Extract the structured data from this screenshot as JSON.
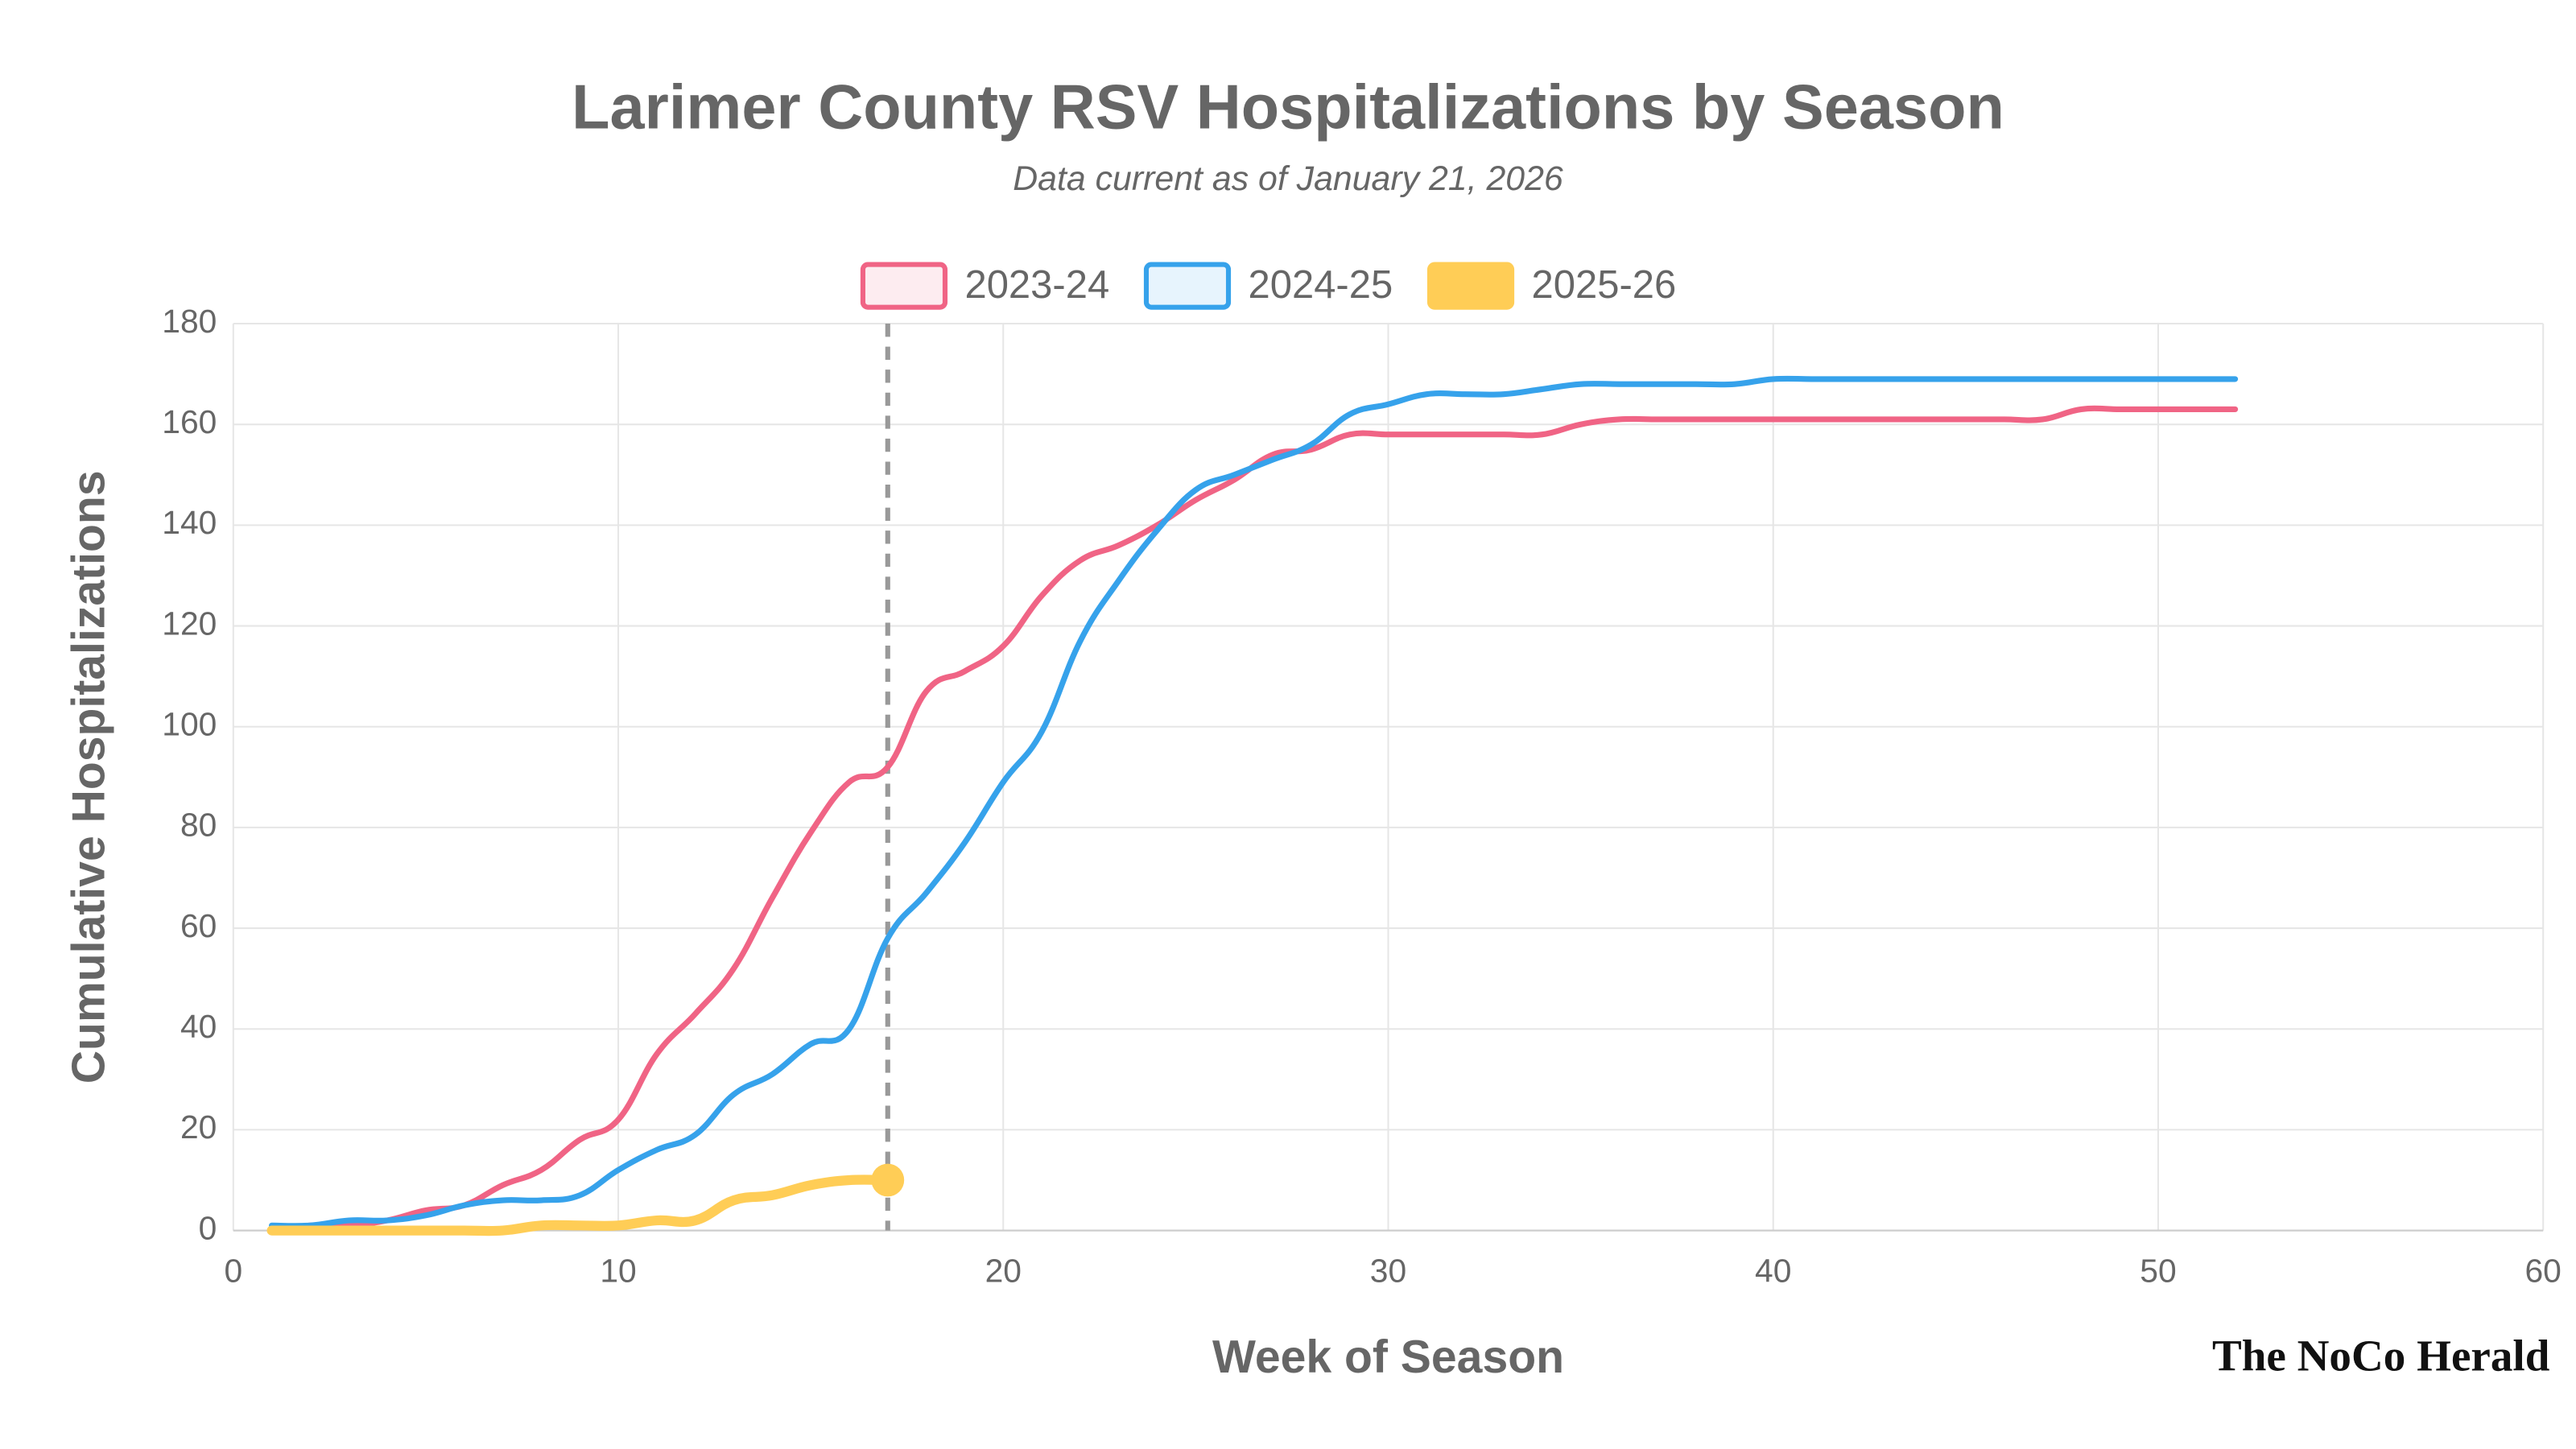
{
  "chart_data": {
    "type": "line",
    "title": "Larimer County RSV Hospitalizations by Season",
    "subtitle": "Data current as of January 21, 2026",
    "x_label": "Week of Season",
    "y_label": "Cumulative Hospitalizations",
    "credit": "The NoCo Herald",
    "xlim": [
      0,
      60
    ],
    "xticks": [
      0,
      10,
      20,
      30,
      40,
      50,
      60
    ],
    "ylim": [
      0,
      180
    ],
    "yticks": [
      0,
      20,
      40,
      60,
      80,
      100,
      120,
      140,
      160,
      180
    ],
    "grid": true,
    "legend": "top",
    "vline_x": 17,
    "series": [
      {
        "name": "2023-24",
        "color": "#f06485",
        "x": [
          1,
          2,
          3,
          4,
          5,
          6,
          7,
          8,
          9,
          10,
          11,
          12,
          13,
          14,
          15,
          16,
          17,
          18,
          19,
          20,
          21,
          22,
          23,
          24,
          25,
          26,
          27,
          28,
          29,
          30,
          31,
          32,
          33,
          34,
          35,
          36,
          37,
          38,
          39,
          40,
          41,
          42,
          43,
          44,
          45,
          46,
          47,
          48,
          49,
          50,
          51,
          52
        ],
        "values": [
          0,
          1,
          1,
          2,
          4,
          5,
          9,
          12,
          18,
          22,
          35,
          43,
          52,
          66,
          79,
          89,
          92,
          107,
          111,
          116,
          126,
          133,
          136,
          140,
          145,
          149,
          154,
          155,
          158,
          158,
          158,
          158,
          158,
          158,
          160,
          161,
          161,
          161,
          161,
          161,
          161,
          161,
          161,
          161,
          161,
          161,
          161,
          163,
          163,
          163,
          163,
          163
        ]
      },
      {
        "name": "2024-25",
        "color": "#36a2eb",
        "x": [
          1,
          2,
          3,
          4,
          5,
          6,
          7,
          8,
          9,
          10,
          11,
          12,
          13,
          14,
          15,
          16,
          17,
          18,
          19,
          20,
          21,
          22,
          23,
          24,
          25,
          26,
          27,
          28,
          29,
          30,
          31,
          32,
          33,
          34,
          35,
          36,
          37,
          38,
          39,
          40,
          41,
          42,
          43,
          44,
          45,
          46,
          47,
          48,
          49,
          50,
          51,
          52
        ],
        "values": [
          1,
          1,
          2,
          2,
          3,
          5,
          6,
          6,
          7,
          12,
          16,
          19,
          27,
          31,
          37,
          40,
          58,
          67,
          77,
          89,
          99,
          117,
          129,
          139,
          147,
          150,
          153,
          156,
          162,
          164,
          166,
          166,
          166,
          167,
          168,
          168,
          168,
          168,
          168,
          169,
          169,
          169,
          169,
          169,
          169,
          169,
          169,
          169,
          169,
          169,
          169,
          169
        ]
      },
      {
        "name": "2025-26",
        "color": "#ffcd56",
        "x": [
          1,
          2,
          3,
          4,
          5,
          6,
          7,
          8,
          9,
          10,
          11,
          12,
          13,
          14,
          15,
          16,
          17
        ],
        "values": [
          0,
          0,
          0,
          0,
          0,
          0,
          0,
          1,
          1,
          1,
          2,
          2,
          6,
          7,
          9,
          10,
          10
        ]
      }
    ]
  }
}
